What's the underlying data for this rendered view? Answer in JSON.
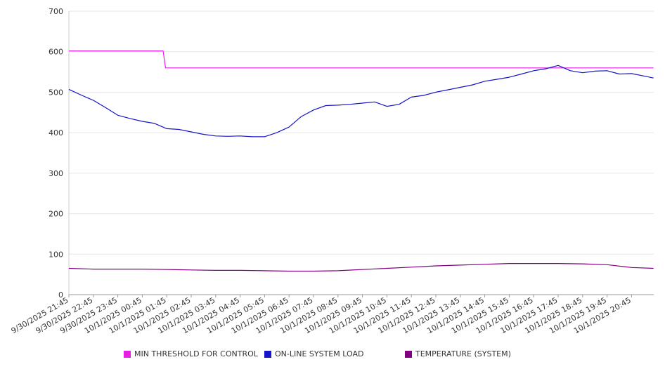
{
  "chart_data": {
    "type": "line",
    "ylim": [
      0,
      700
    ],
    "yticks": [
      0,
      100,
      200,
      300,
      400,
      500,
      600,
      700
    ],
    "grid": true,
    "legend_position": "bottom",
    "xticks": [
      "9/30/2025 21:45",
      "9/30/2025 22:45",
      "9/30/2025 23:45",
      "10/1/2025 00:45",
      "10/1/2025 01:45",
      "10/1/2025 02:45",
      "10/1/2025 03:45",
      "10/1/2025 04:45",
      "10/1/2025 05:45",
      "10/1/2025 06:45",
      "10/1/2025 07:45",
      "10/1/2025 08:45",
      "10/1/2025 09:45",
      "10/1/2025 10:45",
      "10/1/2025 11:45",
      "10/1/2025 12:45",
      "10/1/2025 13:45",
      "10/1/2025 14:45",
      "10/1/2025 15:45",
      "10/1/2025 16:45",
      "10/1/2025 17:45",
      "10/1/2025 18:45",
      "10/1/2025 19:45",
      "10/1/2025 20:45"
    ],
    "x_hours": [
      0,
      0.5,
      1,
      1.5,
      2,
      2.5,
      3,
      3.5,
      4,
      4.5,
      5,
      5.5,
      6,
      6.5,
      7,
      7.5,
      8,
      8.5,
      9,
      9.5,
      10,
      10.5,
      11,
      11.5,
      12,
      12.5,
      13,
      13.5,
      14,
      14.5,
      15,
      15.5,
      16,
      16.5,
      17,
      17.5,
      18,
      18.5,
      19,
      19.5,
      20,
      20.5,
      21,
      21.5,
      22,
      22.5,
      23,
      23.5,
      23.9
    ],
    "series": [
      {
        "name": "MIN THRESHOLD FOR CONTROL",
        "color": "#e61ee6",
        "points": [
          [
            0,
            602
          ],
          [
            3.85,
            602
          ],
          [
            3.95,
            560
          ],
          [
            23.9,
            560
          ]
        ]
      },
      {
        "name": "ON-LINE SYSTEM LOAD",
        "color": "#1414c8",
        "points": [
          [
            0,
            507
          ],
          [
            0.5,
            493
          ],
          [
            1,
            480
          ],
          [
            1.5,
            462
          ],
          [
            2,
            443
          ],
          [
            2.5,
            435
          ],
          [
            3,
            428
          ],
          [
            3.5,
            423
          ],
          [
            4,
            410
          ],
          [
            4.5,
            408
          ],
          [
            5,
            402
          ],
          [
            5.5,
            396
          ],
          [
            6,
            392
          ],
          [
            6.5,
            391
          ],
          [
            7,
            392
          ],
          [
            7.5,
            390
          ],
          [
            8,
            390
          ],
          [
            8.5,
            400
          ],
          [
            9,
            414
          ],
          [
            9.5,
            440
          ],
          [
            10,
            456
          ],
          [
            10.5,
            467
          ],
          [
            11,
            468
          ],
          [
            11.5,
            470
          ],
          [
            12,
            473
          ],
          [
            12.5,
            476
          ],
          [
            13,
            465
          ],
          [
            13.5,
            470
          ],
          [
            14,
            488
          ],
          [
            14.5,
            492
          ],
          [
            15,
            500
          ],
          [
            15.5,
            506
          ],
          [
            16,
            512
          ],
          [
            16.5,
            518
          ],
          [
            17,
            527
          ],
          [
            17.5,
            532
          ],
          [
            18,
            537
          ],
          [
            18.5,
            545
          ],
          [
            19,
            553
          ],
          [
            19.5,
            558
          ],
          [
            20,
            566
          ],
          [
            20.5,
            553
          ],
          [
            21,
            548
          ],
          [
            21.5,
            552
          ],
          [
            22,
            553
          ],
          [
            22.5,
            545
          ],
          [
            23,
            546
          ],
          [
            23.5,
            540
          ],
          [
            23.9,
            535
          ]
        ]
      },
      {
        "name": "TEMPERATURE (SYSTEM)",
        "color": "#800080",
        "points": [
          [
            0,
            65
          ],
          [
            1,
            63
          ],
          [
            2,
            63
          ],
          [
            3,
            63
          ],
          [
            4,
            62
          ],
          [
            5,
            61
          ],
          [
            6,
            60
          ],
          [
            7,
            60
          ],
          [
            8,
            59
          ],
          [
            9,
            58
          ],
          [
            10,
            58
          ],
          [
            11,
            59
          ],
          [
            12,
            62
          ],
          [
            13,
            65
          ],
          [
            14,
            68
          ],
          [
            15,
            71
          ],
          [
            16,
            73
          ],
          [
            17,
            75
          ],
          [
            18,
            77
          ],
          [
            19,
            77
          ],
          [
            20,
            77
          ],
          [
            21,
            76
          ],
          [
            22,
            74
          ],
          [
            23,
            67
          ],
          [
            23.9,
            65
          ]
        ]
      }
    ]
  }
}
